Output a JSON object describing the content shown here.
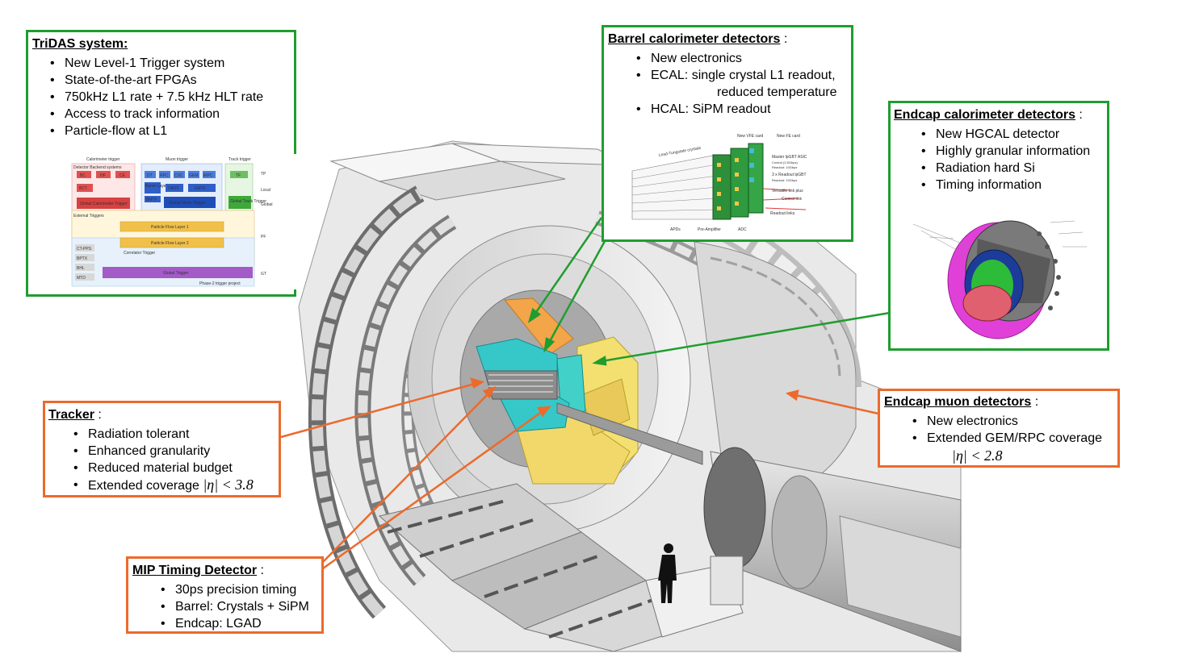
{
  "colors": {
    "green_box": "#1f9d2f",
    "orange_box": "#ec6a2c",
    "tracker_cyan": "#36c8c8",
    "calo_orange": "#f3a54a",
    "endcap_yellow": "#f4e070"
  },
  "tridas": {
    "title": "TriDAS system:",
    "items": [
      "New Level-1 Trigger system",
      "State-of-the-art FPGAs",
      "750kHz L1 rate + 7.5 kHz HLT rate",
      "Access to track information",
      "Particle-flow at L1"
    ],
    "diagram": {
      "calo_trigger": "Calorimeter trigger",
      "muon_trigger": "Muon trigger",
      "track_trigger": "Track trigger",
      "backend": "Detector Backend systems",
      "bc": "BC",
      "hf": "HF",
      "ce": "CE",
      "bct": "BCT",
      "global_calo": "Global Calorimeter Trigger",
      "dt": "DT",
      "rpc": "RPC",
      "csc": "CSC",
      "gem": "GEM",
      "irpc": "iRPC",
      "tf": "TF",
      "barrel_l1": "Barrel Layer-1",
      "omtf": "OMTF",
      "emtf": "EMTF",
      "bmtf": "BMTF",
      "global_muon": "Global Muon Trigger",
      "global_track": "Global Track Trigger",
      "external": "External Triggers",
      "pf1": "Particle Flow Layer 1",
      "pf2": "Particle Flow Layer 2",
      "correlator": "Correlator Trigger",
      "ctpps": "CT-PPS",
      "bptx": "BPTX",
      "bhl": "BHL",
      "mtd": "MTD",
      "global_trigger": "Global Trigger",
      "phase2": "Phase-2 trigger project",
      "tp": "TP",
      "local": "Local",
      "global": "Global",
      "pf": "PF",
      "gt": "GT"
    }
  },
  "barrel": {
    "title": "Barrel calorimeter detectors",
    "colon": " :",
    "item1": "New electronics",
    "item2": "ECAL: single crystal L1 readout,",
    "item2_cont": "reduced temperature",
    "item3": "HCAL: SiPM readout",
    "diagram": {
      "new_vfe": "New VFE card",
      "new_fe": "New FE card",
      "lead": "Lead-Tungstate crystals",
      "master": "Master lpGBT ASIC",
      "control": "Control (2.5Gbps)",
      "readout10": "Readout: 10Gbps",
      "readout3": "3 x Readout lpGBT",
      "readout10b": "Readout: 10Gbps",
      "versatile": "Versatile link plus",
      "control_link": "Control link",
      "readout_links": "Readout links",
      "apds": "APDs",
      "preamp": "Pre-Amplifier",
      "adc": "ADC"
    }
  },
  "endcap_calo": {
    "title": "Endcap calorimeter detectors",
    "colon": " :",
    "items": [
      "New HGCAL detector",
      "Highly granular information",
      "Radiation hard Si",
      "Timing information"
    ]
  },
  "endcap_muon": {
    "title": "Endcap muon detectors",
    "colon": " :",
    "items": [
      "New electronics",
      "Extended GEM/RPC coverage"
    ],
    "eta_range": "|η| < 2.8"
  },
  "tracker": {
    "title": "Tracker",
    "colon": " :",
    "items": [
      "Radiation tolerant",
      "Enhanced granularity",
      "Reduced material budget"
    ],
    "item4": "Extended coverage ",
    "eta_range": "|η| < 3.8"
  },
  "mip": {
    "title": "MIP Timing Detector",
    "colon": " :",
    "items": [
      "30ps precision timing",
      "Barrel: Crystals + SiPM",
      "Endcap: LGAD"
    ]
  }
}
